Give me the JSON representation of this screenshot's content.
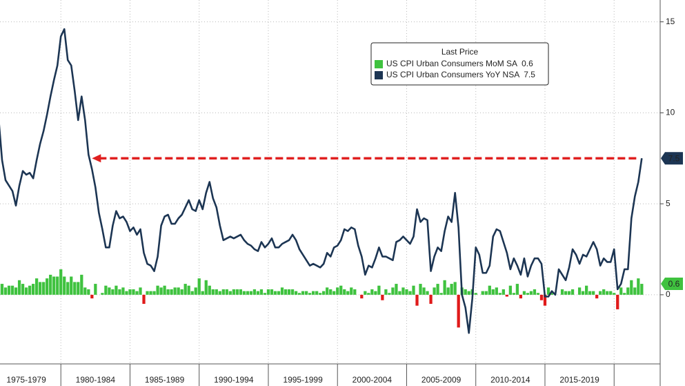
{
  "chart_data": {
    "type": "combo",
    "legend_title": "Last Price",
    "legend_position": "top-right",
    "grid": true,
    "xlim": [
      1975.6,
      2023.33
    ],
    "xticks": [
      1980,
      1985,
      1990,
      1995,
      2000,
      2005,
      2010,
      2015,
      2020
    ],
    "period_labels": [
      "1975-1979",
      "1980-1984",
      "1985-1989",
      "1990-1994",
      "1995-1999",
      "2000-2004",
      "2005-2009",
      "2010-2014",
      "2015-2019"
    ],
    "ylim": [
      -3.8,
      16.2
    ],
    "yticks": [
      0,
      5,
      10,
      15
    ],
    "arrow_color": "#e02020",
    "x": [
      1975.5,
      1975.75,
      1976,
      1976.25,
      1976.5,
      1976.75,
      1977,
      1977.25,
      1977.5,
      1977.75,
      1978,
      1978.25,
      1978.5,
      1978.75,
      1979,
      1979.25,
      1979.5,
      1979.75,
      1980,
      1980.25,
      1980.5,
      1980.75,
      1981,
      1981.25,
      1981.5,
      1981.75,
      1982,
      1982.25,
      1982.5,
      1982.75,
      1983,
      1983.25,
      1983.5,
      1983.75,
      1984,
      1984.25,
      1984.5,
      1984.75,
      1985,
      1985.25,
      1985.5,
      1985.75,
      1986,
      1986.25,
      1986.5,
      1986.75,
      1987,
      1987.25,
      1987.5,
      1987.75,
      1988,
      1988.25,
      1988.5,
      1988.75,
      1989,
      1989.25,
      1989.5,
      1989.75,
      1990,
      1990.25,
      1990.5,
      1990.75,
      1991,
      1991.25,
      1991.5,
      1991.75,
      1992,
      1992.25,
      1992.5,
      1992.75,
      1993,
      1993.25,
      1993.5,
      1993.75,
      1994,
      1994.25,
      1994.5,
      1994.75,
      1995,
      1995.25,
      1995.5,
      1995.75,
      1996,
      1996.25,
      1996.5,
      1996.75,
      1997,
      1997.25,
      1997.5,
      1997.75,
      1998,
      1998.25,
      1998.5,
      1998.75,
      1999,
      1999.25,
      1999.5,
      1999.75,
      2000,
      2000.25,
      2000.5,
      2000.75,
      2001,
      2001.25,
      2001.5,
      2001.75,
      2002,
      2002.25,
      2002.5,
      2002.75,
      2003,
      2003.25,
      2003.5,
      2003.75,
      2004,
      2004.25,
      2004.5,
      2004.75,
      2005,
      2005.25,
      2005.5,
      2005.75,
      2006,
      2006.25,
      2006.5,
      2006.75,
      2007,
      2007.25,
      2007.5,
      2007.75,
      2008,
      2008.25,
      2008.5,
      2008.75,
      2009,
      2009.25,
      2009.5,
      2009.75,
      2010,
      2010.25,
      2010.5,
      2010.75,
      2011,
      2011.25,
      2011.5,
      2011.75,
      2012,
      2012.25,
      2012.5,
      2012.75,
      2013,
      2013.25,
      2013.5,
      2013.75,
      2014,
      2014.25,
      2014.5,
      2014.75,
      2015,
      2015.25,
      2015.5,
      2015.75,
      2016,
      2016.25,
      2016.5,
      2016.75,
      2017,
      2017.25,
      2017.5,
      2017.75,
      2018,
      2018.25,
      2018.5,
      2018.75,
      2019,
      2019.25,
      2019.5,
      2019.75,
      2020,
      2020.25,
      2020.5,
      2020.75,
      2021,
      2021.25,
      2021.5,
      2021.75,
      2022
    ],
    "series": [
      {
        "name": "US CPI Urban Consumers MoM SA",
        "kind": "bar",
        "color": "#3fc23f",
        "negative_color": "#e01a1a",
        "values": [
          0.6,
          0.6,
          0.4,
          0.5,
          0.5,
          0.4,
          0.8,
          0.6,
          0.4,
          0.5,
          0.6,
          0.9,
          0.7,
          0.7,
          0.9,
          1.1,
          1.0,
          1.0,
          1.4,
          1.0,
          0.7,
          1.0,
          0.7,
          0.7,
          1.1,
          0.4,
          0.3,
          -0.2,
          0.6,
          0.0,
          0.1,
          0.5,
          0.4,
          0.3,
          0.5,
          0.3,
          0.4,
          0.2,
          0.3,
          0.3,
          0.2,
          0.4,
          -0.5,
          0.2,
          0.2,
          0.2,
          0.5,
          0.4,
          0.5,
          0.3,
          0.3,
          0.4,
          0.4,
          0.3,
          0.6,
          0.5,
          0.2,
          0.4,
          0.9,
          0.2,
          0.8,
          0.5,
          0.3,
          0.3,
          0.2,
          0.3,
          0.3,
          0.2,
          0.3,
          0.3,
          0.3,
          0.2,
          0.2,
          0.2,
          0.3,
          0.2,
          0.3,
          0.1,
          0.3,
          0.3,
          0.2,
          0.2,
          0.4,
          0.3,
          0.3,
          0.3,
          0.2,
          0.1,
          0.2,
          0.2,
          0.1,
          0.2,
          0.2,
          0.1,
          0.2,
          0.4,
          0.3,
          0.2,
          0.4,
          0.5,
          0.3,
          0.2,
          0.4,
          0.3,
          0.0,
          -0.2,
          0.2,
          0.1,
          0.3,
          0.2,
          0.5,
          -0.3,
          0.3,
          0.1,
          0.4,
          0.6,
          0.2,
          0.4,
          0.3,
          0.2,
          0.5,
          -0.6,
          0.6,
          0.4,
          0.2,
          -0.5,
          0.4,
          0.6,
          0.1,
          0.8,
          0.4,
          0.6,
          0.7,
          -1.8,
          0.4,
          0.3,
          0.2,
          0.3,
          0.1,
          0.0,
          0.2,
          0.2,
          0.5,
          0.3,
          0.4,
          0.1,
          0.3,
          -0.1,
          0.5,
          0.1,
          0.6,
          -0.2,
          0.2,
          0.1,
          0.2,
          0.3,
          0.1,
          -0.3,
          -0.6,
          0.4,
          0.1,
          0.0,
          0.0,
          0.3,
          0.2,
          0.2,
          0.3,
          0.0,
          0.4,
          0.2,
          0.5,
          0.2,
          0.2,
          -0.2,
          0.2,
          0.3,
          0.2,
          0.2,
          0.1,
          -0.8,
          0.4,
          0.1,
          0.4,
          0.8,
          0.4,
          0.9,
          0.6
        ]
      },
      {
        "name": "US CPI Urban Consumers YoY NSA",
        "kind": "line",
        "color": "#1c3553",
        "values": [
          9.7,
          7.4,
          6.3,
          6.0,
          5.7,
          4.9,
          6.0,
          6.8,
          6.6,
          6.7,
          6.4,
          7.4,
          8.3,
          9.0,
          9.9,
          10.9,
          11.8,
          12.6,
          14.2,
          14.6,
          12.9,
          12.6,
          11.2,
          9.6,
          10.9,
          9.6,
          7.7,
          6.9,
          5.9,
          4.5,
          3.6,
          2.6,
          2.6,
          3.8,
          4.6,
          4.2,
          4.3,
          4.0,
          3.5,
          3.7,
          3.3,
          3.6,
          2.3,
          1.7,
          1.6,
          1.3,
          2.1,
          3.8,
          4.3,
          4.4,
          3.9,
          3.9,
          4.2,
          4.4,
          4.8,
          5.2,
          4.7,
          4.6,
          5.2,
          4.7,
          5.6,
          6.2,
          5.3,
          4.8,
          3.8,
          3.0,
          3.1,
          3.2,
          3.1,
          3.2,
          3.3,
          3.0,
          2.8,
          2.7,
          2.5,
          2.4,
          2.9,
          2.6,
          2.8,
          3.1,
          2.6,
          2.6,
          2.8,
          2.9,
          3.0,
          3.3,
          3.0,
          2.5,
          2.2,
          1.9,
          1.6,
          1.7,
          1.6,
          1.5,
          1.7,
          2.3,
          2.1,
          2.6,
          2.7,
          3.0,
          3.6,
          3.5,
          3.7,
          3.6,
          2.7,
          2.1,
          1.1,
          1.6,
          1.5,
          2.0,
          2.6,
          2.1,
          2.1,
          2.0,
          1.9,
          2.9,
          3.0,
          3.2,
          3.0,
          2.8,
          3.2,
          4.7,
          4.0,
          4.2,
          4.1,
          1.3,
          2.1,
          2.6,
          2.4,
          3.5,
          4.3,
          4.0,
          5.6,
          3.7,
          0.0,
          -0.7,
          -2.1,
          -0.2,
          2.6,
          2.2,
          1.2,
          1.2,
          1.6,
          3.2,
          3.6,
          3.5,
          2.9,
          2.3,
          1.4,
          2.0,
          1.6,
          1.1,
          2.0,
          1.0,
          1.6,
          2.0,
          2.0,
          1.7,
          -0.1,
          -0.1,
          0.2,
          0.0,
          1.4,
          1.1,
          0.8,
          1.5,
          2.5,
          2.2,
          1.7,
          2.2,
          2.1,
          2.5,
          2.9,
          2.5,
          1.6,
          2.0,
          1.8,
          1.8,
          2.5,
          0.3,
          0.6,
          1.4,
          1.4,
          4.2,
          5.4,
          6.2,
          7.5
        ]
      }
    ]
  }
}
